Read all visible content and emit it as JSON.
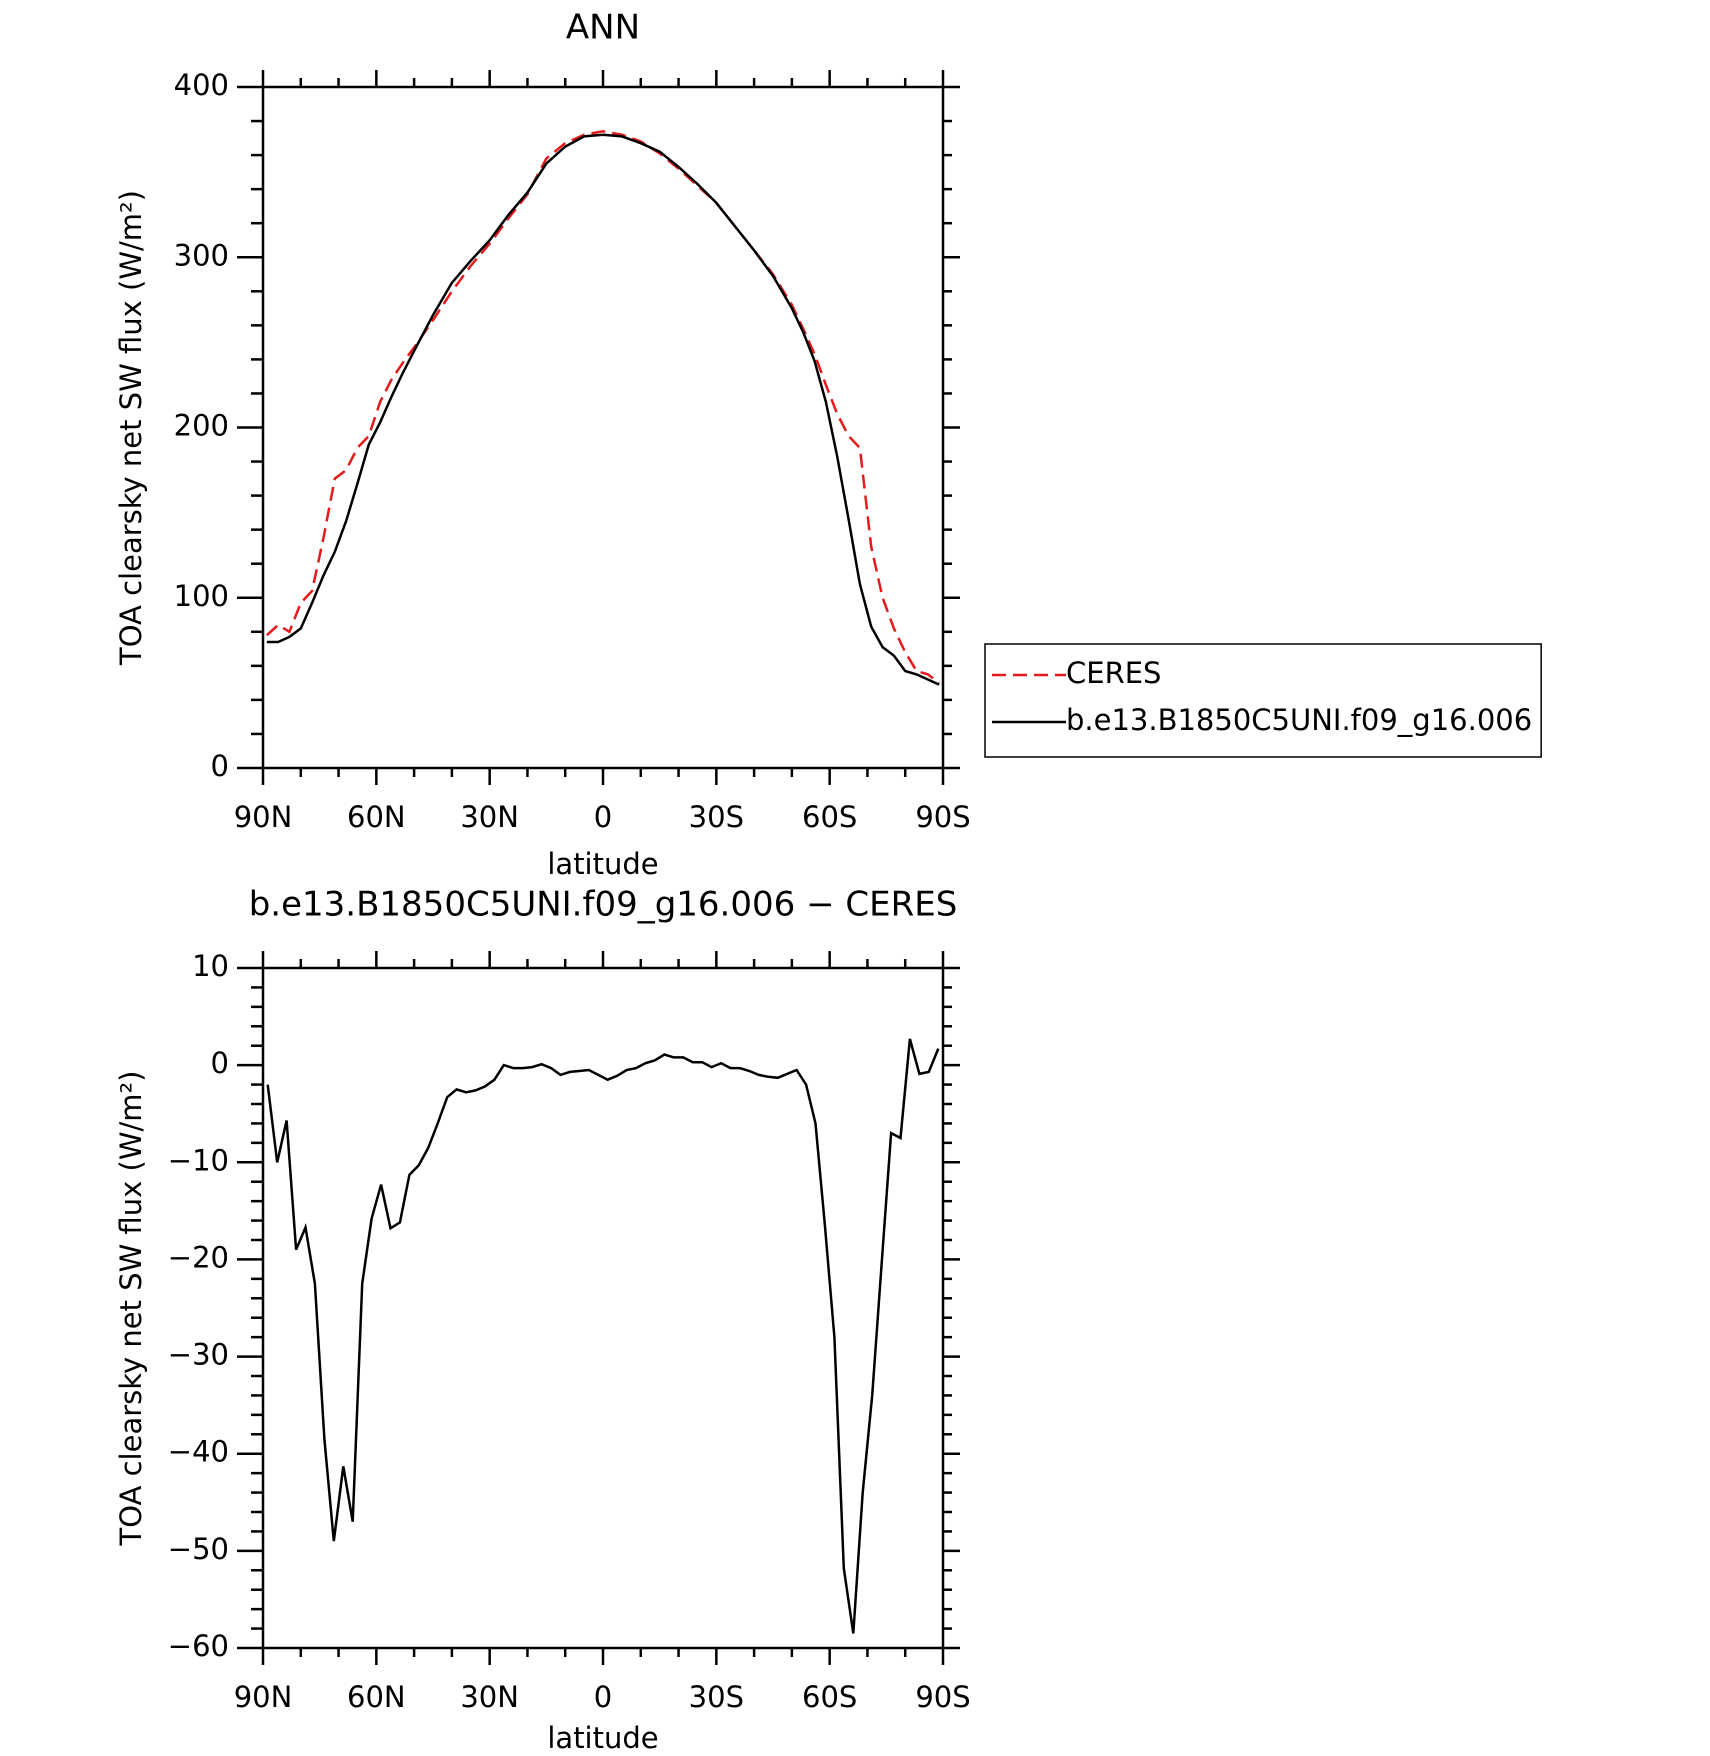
{
  "chart_data": [
    {
      "type": "line",
      "title": "ANN",
      "xlabel": "latitude",
      "ylabel": "TOA clearsky net SW flux (W/m²)",
      "x": [
        89,
        86,
        83,
        80,
        77,
        74,
        71,
        68,
        65,
        62,
        59,
        56,
        53,
        50,
        45,
        40,
        35,
        30,
        25,
        20,
        15,
        10,
        5,
        0,
        -5,
        -10,
        -15,
        -20,
        -25,
        -30,
        -35,
        -40,
        -45,
        -50,
        -53,
        -56,
        -59,
        -62,
        -65,
        -68,
        -71,
        -74,
        -77,
        -80,
        -83,
        -86,
        -89
      ],
      "series": [
        {
          "name": "CERES",
          "color": "#e41a1c",
          "dash": true,
          "values": [
            78,
            84,
            80,
            97,
            104,
            135,
            170,
            175,
            188,
            195,
            215,
            228,
            238,
            247,
            263,
            280,
            295,
            308,
            323,
            337,
            358,
            367,
            372,
            374,
            372,
            368,
            361,
            352,
            342,
            332,
            318,
            304,
            290,
            272,
            258,
            243,
            225,
            208,
            195,
            188,
            130,
            100,
            82,
            68,
            57,
            55,
            50
          ]
        },
        {
          "name": "b.e13.B1850C5UNI.f09_g16.006",
          "color": "#000000",
          "dash": false,
          "values": [
            74,
            74,
            77,
            82,
            97,
            113,
            127,
            145,
            167,
            190,
            203,
            218,
            232,
            245,
            266,
            285,
            298,
            310,
            325,
            338,
            355,
            365,
            371,
            372,
            371,
            367,
            362,
            353,
            343,
            332,
            318,
            304,
            289,
            270,
            256,
            239,
            215,
            183,
            146,
            108,
            83,
            71,
            66,
            57,
            55,
            52,
            49
          ]
        }
      ],
      "xlim": [
        90,
        -90
      ],
      "xticks": [
        {
          "value": 90,
          "label": "90N"
        },
        {
          "value": 60,
          "label": "60N"
        },
        {
          "value": 30,
          "label": "30N"
        },
        0,
        {
          "value": -30,
          "label": "30S"
        },
        {
          "value": -60,
          "label": "60S"
        },
        {
          "value": -90,
          "label": "90S"
        }
      ],
      "ylim": [
        0,
        400
      ],
      "yticks": [
        0,
        100,
        200,
        300,
        400
      ],
      "legend": "right"
    },
    {
      "type": "line",
      "title": "b.e13.B1850C5UNI.f09_g16.006 − CERES",
      "xlabel": "latitude",
      "ylabel": "TOA clearsky net SW flux (W/m²)",
      "x": [
        88.75,
        86.25,
        83.75,
        81.25,
        78.75,
        76.25,
        73.75,
        71.25,
        68.75,
        66.25,
        63.75,
        61.25,
        58.75,
        56.25,
        53.75,
        51.25,
        48.75,
        46.25,
        43.75,
        41.25,
        38.75,
        36.25,
        33.75,
        31.25,
        28.75,
        26.25,
        23.75,
        21.25,
        18.75,
        16.25,
        13.75,
        11.25,
        8.75,
        6.25,
        3.75,
        1.25,
        -1.25,
        -3.75,
        -6.25,
        -8.75,
        -11.25,
        -13.75,
        -16.25,
        -18.75,
        -21.25,
        -23.75,
        -26.25,
        -28.75,
        -31.25,
        -33.75,
        -36.25,
        -38.75,
        -41.25,
        -43.75,
        -46.25,
        -48.75,
        -51.25,
        -53.75,
        -56.25,
        -58.75,
        -61.25,
        -63.75,
        -66.25,
        -68.75,
        -71.25,
        -73.75,
        -76.25,
        -78.75,
        -81.25,
        -83.75,
        -86.25,
        -88.75
      ],
      "series": [
        {
          "color": "#000000",
          "dash": false,
          "values": [
            -2,
            -10,
            -5.7,
            -19,
            -16.7,
            -22.5,
            -38.5,
            -49,
            -41.3,
            -47,
            -22.5,
            -15.8,
            -12.3,
            -16.8,
            -16.2,
            -11.3,
            -10.3,
            -8.5,
            -6,
            -3.3,
            -2.5,
            -2.8,
            -2.6,
            -2.2,
            -1.5,
            0,
            -0.3,
            -0.3,
            -0.2,
            0.1,
            -0.3,
            -1,
            -0.7,
            -0.6,
            -0.5,
            -1,
            -1.5,
            -1.1,
            -0.5,
            -0.3,
            0.2,
            0.5,
            1.1,
            0.8,
            0.8,
            0.3,
            0.3,
            -0.2,
            0.2,
            -0.3,
            -0.3,
            -0.6,
            -1,
            -1.2,
            -1.3,
            -0.9,
            -0.5,
            -2,
            -6,
            -16.5,
            -28,
            -51.8,
            -58.5,
            -44,
            -34,
            -20.5,
            -7,
            -7.5,
            2.7,
            -0.9,
            -0.7,
            1.7
          ]
        }
      ],
      "xlim": [
        90,
        -90
      ],
      "xticks": [
        {
          "value": 90,
          "label": "90N"
        },
        {
          "value": 60,
          "label": "60N"
        },
        {
          "value": 30,
          "label": "30N"
        },
        0,
        {
          "value": -30,
          "label": "30S"
        },
        {
          "value": -60,
          "label": "60S"
        },
        {
          "value": -90,
          "label": "90S"
        }
      ],
      "ylim": [
        -60,
        10
      ],
      "yticks": [
        {
          "value": -60,
          "label": "−60"
        },
        {
          "value": -50,
          "label": "−50"
        },
        {
          "value": -40,
          "label": "−40"
        },
        {
          "value": -30,
          "label": "−30"
        },
        {
          "value": -20,
          "label": "−20"
        },
        {
          "value": -10,
          "label": "−10"
        },
        0,
        10
      ]
    }
  ]
}
